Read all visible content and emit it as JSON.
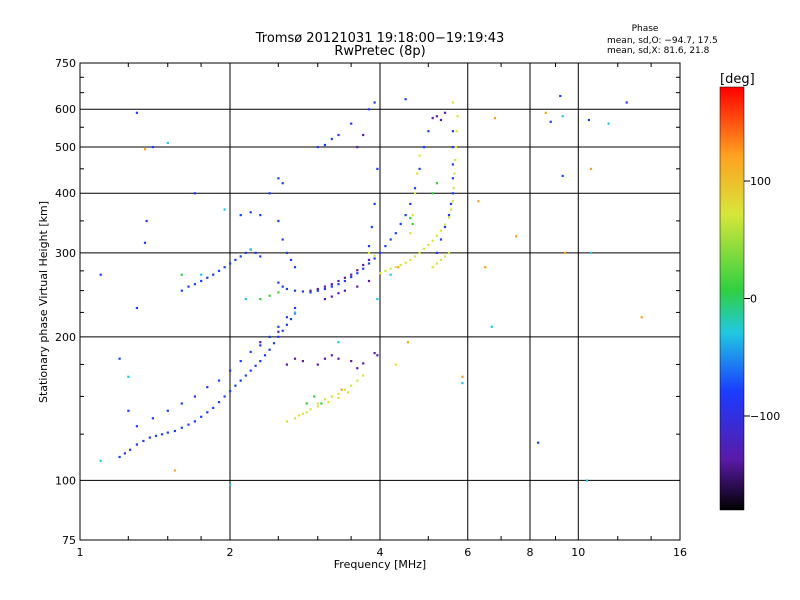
{
  "chart_data": {
    "type": "scatter",
    "title": "Tromsø 20121031 19:18:00−19:19:43",
    "subtitle": "RwPretec (8p)",
    "xlabel": "Frequency [MHz]",
    "ylabel": "Stationary phase Virtual Height [km]",
    "x_scale": "log",
    "y_scale": "log",
    "xlim": [
      1,
      16
    ],
    "ylim": [
      75,
      750
    ],
    "x_ticks": [
      1,
      2,
      4,
      6,
      8,
      10,
      16
    ],
    "x_tick_labels": [
      "1",
      "2",
      "4",
      "6",
      "8",
      "10",
      "16"
    ],
    "y_ticks": [
      75,
      100,
      200,
      300,
      400,
      500,
      600,
      750
    ],
    "y_tick_labels": [
      "75",
      "100",
      "200",
      "300",
      "400",
      "500",
      "600",
      "750"
    ],
    "grid": true,
    "colorbar": {
      "label": "[deg]",
      "range": [
        -180,
        180
      ],
      "ticks": [
        100,
        0,
        -100
      ],
      "tick_labels": [
        "100",
        "0",
        "−100"
      ]
    },
    "annotation": {
      "title": "Phase",
      "line1": "mean, sd,O: −94.7, 17.5",
      "line2": "mean, sd,X:  81.6, 21.8"
    },
    "colors": {
      "blue": "#1a3cff",
      "purple": "#5a1aa8",
      "yellow": "#d8e63a",
      "green": "#30d040",
      "cyan": "#20c8e0",
      "orange": "#ffa020"
    },
    "series": [
      {
        "color": "blue",
        "points": [
          [
            1.2,
            112
          ],
          [
            1.23,
            114
          ],
          [
            1.26,
            116
          ],
          [
            1.3,
            119
          ],
          [
            1.34,
            121
          ],
          [
            1.38,
            123
          ],
          [
            1.42,
            124
          ],
          [
            1.46,
            125
          ],
          [
            1.5,
            126
          ],
          [
            1.55,
            127
          ],
          [
            1.6,
            129
          ],
          [
            1.65,
            131
          ],
          [
            1.7,
            133
          ],
          [
            1.75,
            136
          ],
          [
            1.8,
            139
          ],
          [
            1.85,
            142
          ],
          [
            1.9,
            146
          ],
          [
            1.95,
            150
          ],
          [
            2.0,
            154
          ],
          [
            2.05,
            158
          ],
          [
            2.1,
            162
          ],
          [
            2.15,
            166
          ],
          [
            2.2,
            170
          ],
          [
            2.25,
            174
          ],
          [
            2.3,
            178
          ],
          [
            2.35,
            183
          ],
          [
            2.4,
            188
          ],
          [
            2.45,
            194
          ],
          [
            2.5,
            200
          ],
          [
            2.55,
            206
          ],
          [
            2.6,
            212
          ],
          [
            2.65,
            218
          ],
          [
            2.7,
            224
          ],
          [
            1.3,
            130
          ],
          [
            1.4,
            135
          ],
          [
            1.5,
            140
          ],
          [
            1.6,
            145
          ],
          [
            1.7,
            150
          ],
          [
            1.8,
            157
          ],
          [
            1.9,
            162
          ],
          [
            2.0,
            170
          ],
          [
            2.1,
            178
          ],
          [
            2.2,
            186
          ],
          [
            2.3,
            192
          ],
          [
            2.4,
            200
          ],
          [
            2.5,
            210
          ],
          [
            2.6,
            220
          ],
          [
            2.7,
            230
          ],
          [
            1.6,
            250
          ],
          [
            1.65,
            255
          ],
          [
            1.7,
            258
          ],
          [
            1.75,
            262
          ],
          [
            1.8,
            266
          ],
          [
            1.85,
            270
          ],
          [
            1.9,
            275
          ],
          [
            1.95,
            280
          ],
          [
            2.0,
            285
          ],
          [
            2.05,
            290
          ],
          [
            2.1,
            295
          ],
          [
            2.15,
            300
          ],
          [
            2.2,
            305
          ],
          [
            2.25,
            300
          ],
          [
            2.3,
            295
          ],
          [
            2.1,
            360
          ],
          [
            2.2,
            365
          ],
          [
            2.3,
            360
          ],
          [
            2.4,
            400
          ],
          [
            2.5,
            430
          ],
          [
            2.55,
            420
          ],
          [
            2.5,
            350
          ],
          [
            2.55,
            320
          ],
          [
            2.6,
            300
          ],
          [
            2.65,
            290
          ],
          [
            2.7,
            280
          ],
          [
            2.5,
            260
          ],
          [
            2.55,
            255
          ],
          [
            2.6,
            252
          ],
          [
            2.7,
            250
          ],
          [
            2.8,
            249
          ],
          [
            2.9,
            248
          ],
          [
            3.0,
            250
          ],
          [
            3.1,
            252
          ],
          [
            3.2,
            255
          ],
          [
            3.3,
            258
          ],
          [
            3.4,
            262
          ],
          [
            3.5,
            267
          ],
          [
            3.6,
            272
          ],
          [
            3.7,
            278
          ],
          [
            3.8,
            285
          ],
          [
            3.9,
            292
          ],
          [
            4.0,
            300
          ],
          [
            4.1,
            310
          ],
          [
            4.2,
            320
          ],
          [
            4.3,
            330
          ],
          [
            4.4,
            345
          ],
          [
            4.5,
            360
          ],
          [
            4.6,
            380
          ],
          [
            4.7,
            410
          ],
          [
            4.8,
            450
          ],
          [
            4.9,
            500
          ],
          [
            5.0,
            540
          ],
          [
            3.0,
            500
          ],
          [
            3.1,
            505
          ],
          [
            3.2,
            520
          ],
          [
            3.3,
            530
          ],
          [
            3.5,
            560
          ],
          [
            3.8,
            600
          ],
          [
            3.9,
            620
          ],
          [
            3.95,
            450
          ],
          [
            3.9,
            380
          ],
          [
            3.85,
            340
          ],
          [
            3.8,
            310
          ],
          [
            5.2,
            300
          ],
          [
            5.3,
            320
          ],
          [
            5.4,
            340
          ],
          [
            5.5,
            360
          ],
          [
            5.55,
            380
          ],
          [
            5.6,
            400
          ],
          [
            5.6,
            430
          ],
          [
            5.6,
            460
          ],
          [
            5.6,
            500
          ],
          [
            5.6,
            540
          ],
          [
            1.2,
            180
          ],
          [
            1.25,
            140
          ],
          [
            1.3,
            230
          ],
          [
            1.35,
            315
          ],
          [
            1.36,
            350
          ],
          [
            1.7,
            400
          ],
          [
            1.1,
            270
          ],
          [
            1.4,
            500
          ],
          [
            1.3,
            590
          ],
          [
            4.5,
            630
          ],
          [
            9.2,
            640
          ],
          [
            8.8,
            565
          ],
          [
            9.3,
            435
          ],
          [
            8.3,
            120
          ],
          [
            10.5,
            570
          ],
          [
            12.5,
            620
          ]
        ]
      },
      {
        "color": "purple",
        "points": [
          [
            2.9,
            250
          ],
          [
            3.0,
            252
          ],
          [
            3.1,
            255
          ],
          [
            3.2,
            258
          ],
          [
            3.3,
            262
          ],
          [
            3.4,
            266
          ],
          [
            3.5,
            270
          ],
          [
            3.6,
            276
          ],
          [
            3.7,
            283
          ],
          [
            3.8,
            290
          ],
          [
            2.6,
            175
          ],
          [
            2.7,
            180
          ],
          [
            2.8,
            178
          ],
          [
            3.0,
            175
          ],
          [
            3.1,
            180
          ],
          [
            3.2,
            183
          ],
          [
            3.3,
            180
          ],
          [
            3.5,
            178
          ],
          [
            3.6,
            172
          ],
          [
            3.7,
            176
          ],
          [
            3.1,
            240
          ],
          [
            3.2,
            243
          ],
          [
            3.3,
            247
          ],
          [
            3.4,
            250
          ],
          [
            3.6,
            255
          ],
          [
            3.8,
            262
          ],
          [
            2.3,
            195
          ],
          [
            2.5,
            205
          ],
          [
            3.9,
            185
          ],
          [
            3.95,
            183
          ],
          [
            5.1,
            575
          ],
          [
            5.2,
            580
          ],
          [
            5.3,
            570
          ],
          [
            5.4,
            590
          ],
          [
            3.6,
            500
          ],
          [
            3.7,
            530
          ]
        ]
      },
      {
        "color": "yellow",
        "points": [
          [
            2.6,
            133
          ],
          [
            2.7,
            135
          ],
          [
            2.8,
            138
          ],
          [
            2.9,
            141
          ],
          [
            3.0,
            145
          ],
          [
            3.1,
            148
          ],
          [
            3.2,
            150
          ],
          [
            3.3,
            152
          ],
          [
            3.4,
            155
          ],
          [
            3.5,
            158
          ],
          [
            3.6,
            162
          ],
          [
            3.7,
            166
          ],
          [
            2.75,
            137
          ],
          [
            2.85,
            139
          ],
          [
            3.0,
            143
          ],
          [
            3.15,
            146
          ],
          [
            3.3,
            149
          ],
          [
            3.45,
            153
          ],
          [
            4.0,
            272
          ],
          [
            4.1,
            275
          ],
          [
            4.2,
            278
          ],
          [
            4.3,
            280
          ],
          [
            4.4,
            283
          ],
          [
            4.5,
            286
          ],
          [
            4.6,
            290
          ],
          [
            4.7,
            295
          ],
          [
            4.8,
            300
          ],
          [
            4.9,
            306
          ],
          [
            5.0,
            312
          ],
          [
            5.1,
            318
          ],
          [
            5.2,
            326
          ],
          [
            5.3,
            334
          ],
          [
            5.4,
            344
          ],
          [
            5.5,
            356
          ],
          [
            5.55,
            370
          ],
          [
            5.6,
            385
          ],
          [
            5.62,
            410
          ],
          [
            5.64,
            440
          ],
          [
            5.66,
            470
          ],
          [
            5.68,
            500
          ],
          [
            5.7,
            540
          ],
          [
            5.72,
            580
          ],
          [
            4.6,
            330
          ],
          [
            4.65,
            360
          ],
          [
            4.7,
            400
          ],
          [
            4.75,
            440
          ],
          [
            4.8,
            480
          ],
          [
            5.1,
            280
          ],
          [
            5.2,
            285
          ],
          [
            5.3,
            290
          ],
          [
            5.4,
            295
          ],
          [
            5.5,
            300
          ],
          [
            3.8,
            300
          ],
          [
            3.9,
            296
          ],
          [
            4.3,
            175
          ],
          [
            5.6,
            620
          ]
        ]
      },
      {
        "color": "green",
        "points": [
          [
            2.3,
            240
          ],
          [
            2.4,
            244
          ],
          [
            2.5,
            248
          ],
          [
            4.6,
            355
          ],
          [
            4.65,
            345
          ],
          [
            5.1,
            400
          ],
          [
            5.2,
            420
          ],
          [
            2.85,
            145
          ],
          [
            2.95,
            150
          ],
          [
            3.05,
            145
          ],
          [
            1.6,
            270
          ]
        ]
      },
      {
        "color": "cyan",
        "points": [
          [
            1.1,
            110
          ],
          [
            1.25,
            165
          ],
          [
            1.5,
            510
          ],
          [
            1.75,
            270
          ],
          [
            1.95,
            370
          ],
          [
            2.0,
            98
          ],
          [
            2.15,
            240
          ],
          [
            2.2,
            305
          ],
          [
            2.7,
            225
          ],
          [
            3.3,
            195
          ],
          [
            3.95,
            240
          ],
          [
            4.2,
            270
          ],
          [
            5.85,
            160
          ],
          [
            6.7,
            210
          ],
          [
            9.3,
            580
          ],
          [
            10.6,
            300
          ],
          [
            10.4,
            100
          ],
          [
            11.5,
            560
          ]
        ]
      },
      {
        "color": "orange",
        "points": [
          [
            1.35,
            495
          ],
          [
            1.55,
            105
          ],
          [
            3.35,
            155
          ],
          [
            4.35,
            280
          ],
          [
            4.55,
            195
          ],
          [
            5.85,
            165
          ],
          [
            6.3,
            385
          ],
          [
            6.8,
            575
          ],
          [
            7.5,
            325
          ],
          [
            8.6,
            590
          ],
          [
            9.4,
            300
          ],
          [
            10.6,
            450
          ],
          [
            13.4,
            220
          ],
          [
            6.5,
            280
          ]
        ]
      }
    ]
  }
}
